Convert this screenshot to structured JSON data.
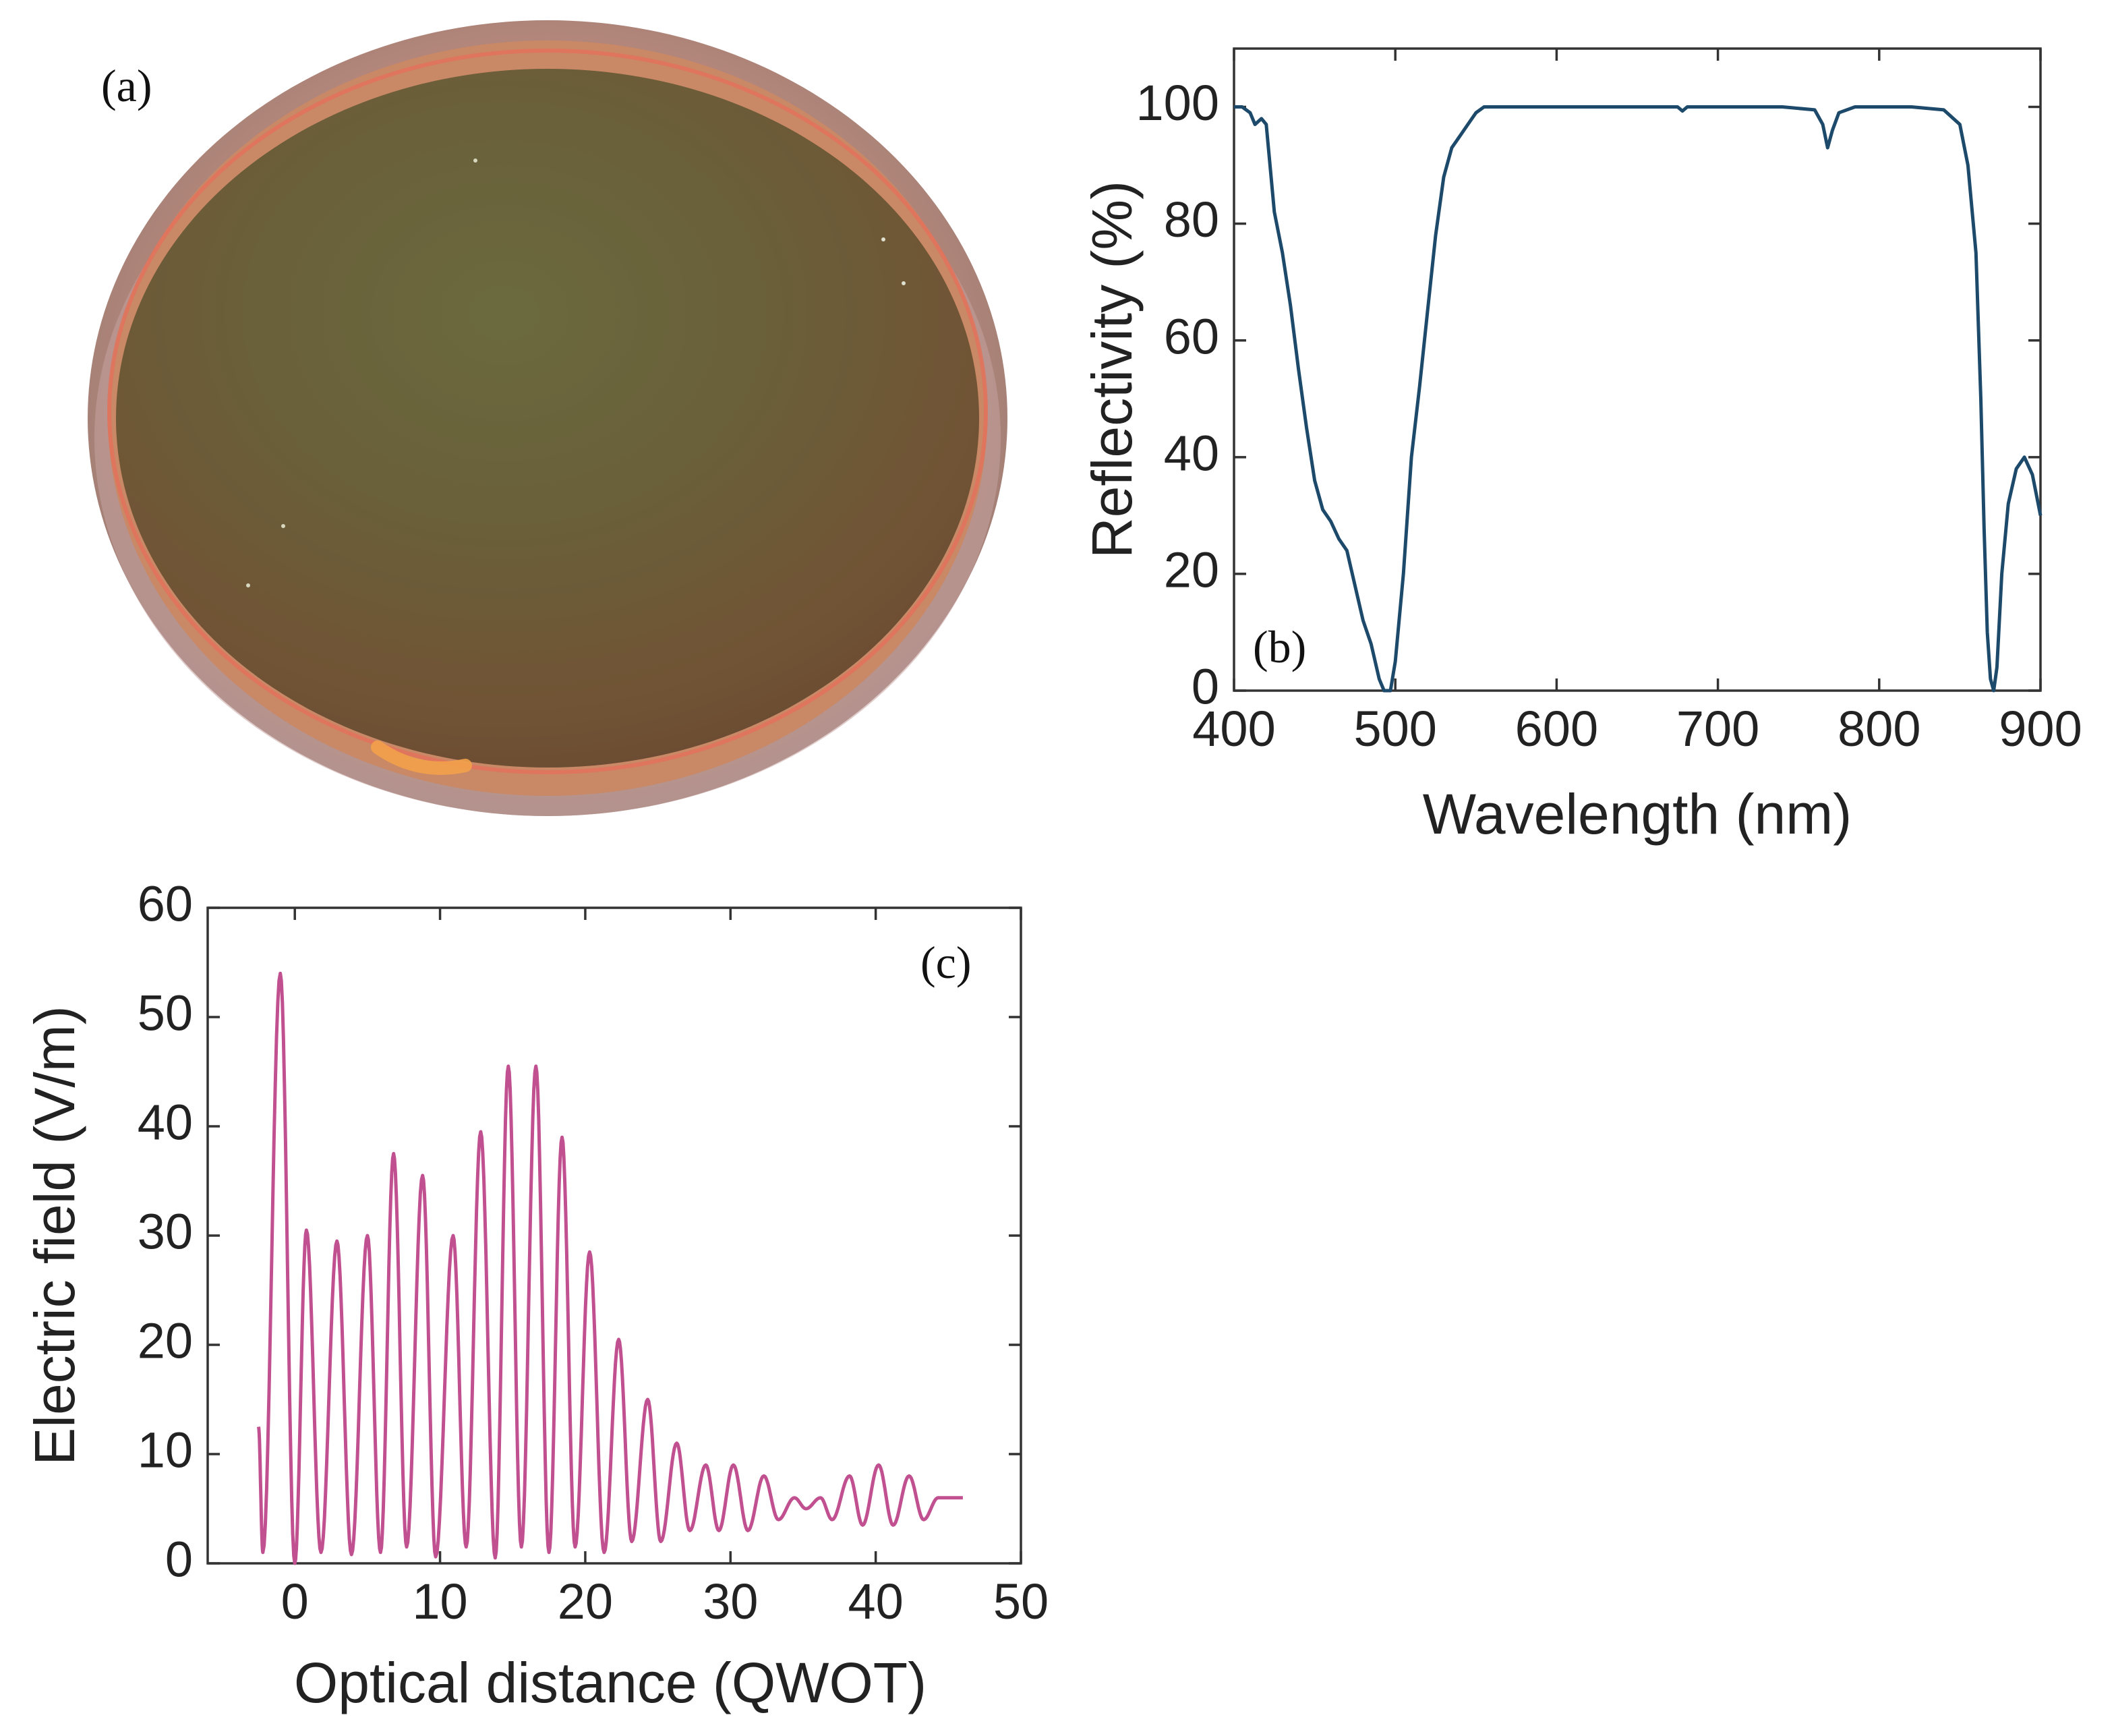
{
  "figure": {
    "panel_a": {
      "label": "(a)",
      "photo": "coated-optical-mirror-photo"
    },
    "panel_b": {
      "label": "(b)"
    },
    "panel_c": {
      "label": "(c)"
    }
  },
  "chart_data": [
    {
      "id": "b",
      "type": "line",
      "xlabel": "Wavelength (nm)",
      "ylabel": "Reflectivity (%)",
      "xlim": [
        400,
        900
      ],
      "ylim": [
        0,
        110
      ],
      "xticks": [
        400,
        500,
        600,
        700,
        800,
        900
      ],
      "yticks": [
        0,
        20,
        40,
        60,
        80,
        100
      ],
      "grid": false,
      "color": "#1d4a6b",
      "series": [
        {
          "name": "Reflectivity",
          "points": [
            [
              400,
              100
            ],
            [
              405,
              100
            ],
            [
              410,
              99
            ],
            [
              413,
              97
            ],
            [
              417,
              98
            ],
            [
              420,
              97
            ],
            [
              425,
              82
            ],
            [
              430,
              75
            ],
            [
              435,
              66
            ],
            [
              440,
              55
            ],
            [
              445,
              45
            ],
            [
              450,
              36
            ],
            [
              455,
              31
            ],
            [
              460,
              29
            ],
            [
              465,
              26
            ],
            [
              470,
              24
            ],
            [
              475,
              18
            ],
            [
              480,
              12
            ],
            [
              485,
              8
            ],
            [
              490,
              2
            ],
            [
              493,
              0
            ],
            [
              497,
              0
            ],
            [
              500,
              5
            ],
            [
              505,
              20
            ],
            [
              510,
              40
            ],
            [
              515,
              52
            ],
            [
              520,
              65
            ],
            [
              525,
              78
            ],
            [
              530,
              88
            ],
            [
              535,
              93
            ],
            [
              540,
              95
            ],
            [
              545,
              97
            ],
            [
              550,
              99
            ],
            [
              555,
              100
            ],
            [
              600,
              100
            ],
            [
              650,
              100
            ],
            [
              675,
              100
            ],
            [
              678,
              99.3
            ],
            [
              681,
              100
            ],
            [
              700,
              100
            ],
            [
              740,
              100
            ],
            [
              760,
              99.5
            ],
            [
              765,
              97
            ],
            [
              768,
              93
            ],
            [
              771,
              96
            ],
            [
              775,
              99
            ],
            [
              785,
              100
            ],
            [
              820,
              100
            ],
            [
              840,
              99.5
            ],
            [
              850,
              97
            ],
            [
              855,
              90
            ],
            [
              860,
              75
            ],
            [
              863,
              50
            ],
            [
              865,
              28
            ],
            [
              867,
              10
            ],
            [
              869,
              2
            ],
            [
              871,
              0
            ],
            [
              873,
              4
            ],
            [
              876,
              20
            ],
            [
              880,
              32
            ],
            [
              885,
              38
            ],
            [
              890,
              40
            ],
            [
              895,
              37
            ],
            [
              900,
              30
            ]
          ]
        }
      ]
    },
    {
      "id": "c",
      "type": "line",
      "xlabel": "Optical distance (QWOT)",
      "ylabel": "Electric field (V/m)",
      "xlim": [
        -6,
        50
      ],
      "ylim": [
        0,
        60
      ],
      "xticks": [
        0,
        10,
        20,
        30,
        40,
        50
      ],
      "yticks": [
        0,
        10,
        20,
        30,
        40,
        50,
        60
      ],
      "grid": false,
      "color": "#c0508f",
      "series": [
        {
          "name": "Electric field",
          "start": {
            "x": -2.5,
            "y": 12.5
          },
          "oscillations": [
            {
              "min_x": -2.2,
              "min_y": 1.0,
              "max_x": -1.0,
              "max_y": 54
            },
            {
              "min_x": 0.0,
              "min_y": 0.0,
              "max_x": 0.8,
              "max_y": 30.5
            },
            {
              "min_x": 1.8,
              "min_y": 1.0,
              "max_x": 2.9,
              "max_y": 29.5
            },
            {
              "min_x": 3.9,
              "min_y": 0.8,
              "max_x": 5.0,
              "max_y": 30.0
            },
            {
              "min_x": 5.9,
              "min_y": 1.0,
              "max_x": 6.8,
              "max_y": 37.5
            },
            {
              "min_x": 7.7,
              "min_y": 1.5,
              "max_x": 8.8,
              "max_y": 35.5
            },
            {
              "min_x": 9.7,
              "min_y": 0.6,
              "max_x": 10.9,
              "max_y": 30.0
            },
            {
              "min_x": 11.8,
              "min_y": 1.5,
              "max_x": 12.8,
              "max_y": 39.5
            },
            {
              "min_x": 13.8,
              "min_y": 0.5,
              "max_x": 14.7,
              "max_y": 45.5
            },
            {
              "min_x": 15.6,
              "min_y": 1.5,
              "max_x": 16.6,
              "max_y": 45.5
            },
            {
              "min_x": 17.5,
              "min_y": 1.0,
              "max_x": 18.4,
              "max_y": 39.0
            },
            {
              "min_x": 19.3,
              "min_y": 1.5,
              "max_x": 20.3,
              "max_y": 28.5
            },
            {
              "min_x": 21.3,
              "min_y": 1.0,
              "max_x": 22.3,
              "max_y": 20.5
            },
            {
              "min_x": 23.2,
              "min_y": 2.0,
              "max_x": 24.3,
              "max_y": 15.0
            },
            {
              "min_x": 25.2,
              "min_y": 2.0,
              "max_x": 26.3,
              "max_y": 11.0
            },
            {
              "min_x": 27.2,
              "min_y": 3.0,
              "max_x": 28.3,
              "max_y": 9.0
            },
            {
              "min_x": 29.2,
              "min_y": 3.0,
              "max_x": 30.2,
              "max_y": 9.0
            },
            {
              "min_x": 31.2,
              "min_y": 3.0,
              "max_x": 32.3,
              "max_y": 8.0
            },
            {
              "min_x": 33.3,
              "min_y": 4.0,
              "max_x": 34.4,
              "max_y": 6.0
            },
            {
              "min_x": 35.2,
              "min_y": 5.0,
              "max_x": 36.2,
              "max_y": 6.0
            },
            {
              "min_x": 37.0,
              "min_y": 4.0,
              "max_x": 38.2,
              "max_y": 8.0
            },
            {
              "min_x": 39.1,
              "min_y": 3.5,
              "max_x": 40.2,
              "max_y": 9.0
            },
            {
              "min_x": 41.2,
              "min_y": 3.5,
              "max_x": 42.3,
              "max_y": 8.0
            },
            {
              "min_x": 43.3,
              "min_y": 4.0,
              "max_x": 44.3,
              "max_y": 6.0
            }
          ],
          "end": {
            "x": 46.0,
            "y": 6.0
          }
        }
      ]
    }
  ]
}
